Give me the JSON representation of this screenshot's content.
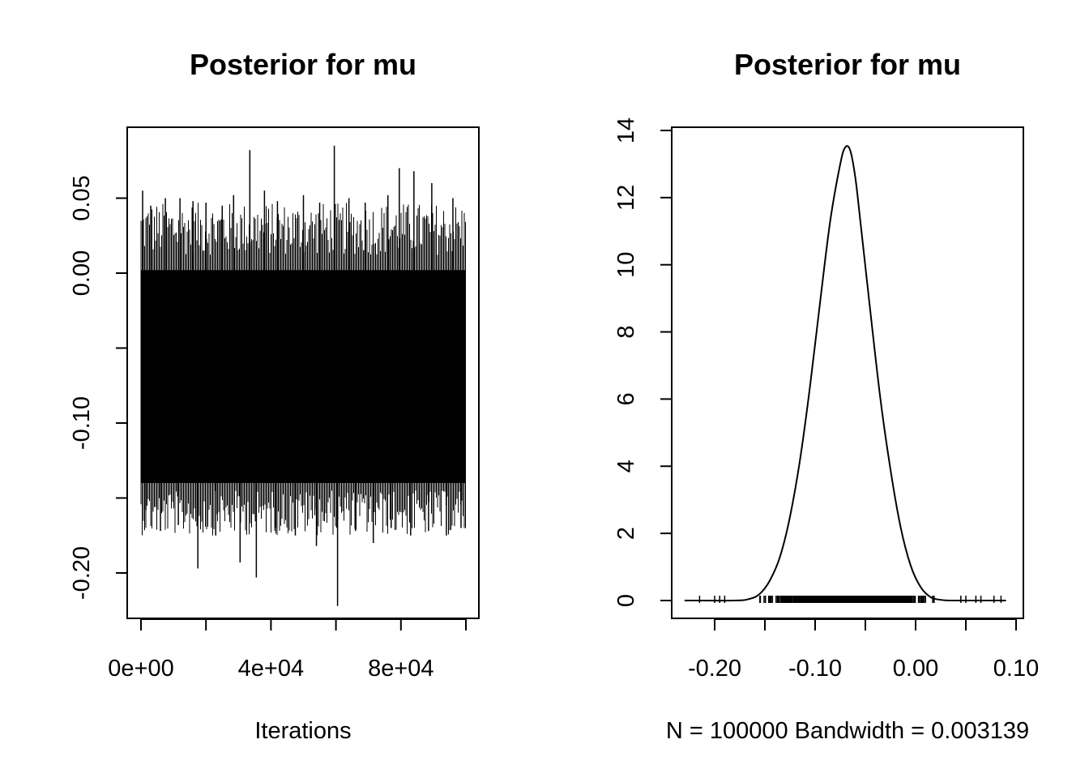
{
  "chart_data": [
    {
      "type": "line",
      "title": "Posterior for mu",
      "xlabel": "Iterations",
      "ylabel": "",
      "xlim": [
        0,
        100000
      ],
      "ylim": [
        -0.22,
        0.08
      ],
      "x_ticks": [
        0,
        20000,
        40000,
        60000,
        80000,
        100000
      ],
      "x_tick_labels": [
        "0e+00",
        "",
        "4e+04",
        "",
        "8e+04",
        ""
      ],
      "y_ticks": [
        -0.2,
        -0.15,
        -0.1,
        -0.05,
        0.0,
        0.05
      ],
      "y_tick_labels": [
        "-0.20",
        "",
        "-0.10",
        "",
        "0.00",
        "0.05"
      ],
      "series": [
        {
          "values_summary": {
            "n": 100000,
            "band_low": -0.14,
            "band_high": 0.002,
            "mean": -0.065
          },
          "spikes": [
            {
              "x": 500,
              "y": 0.055
            },
            {
              "x": 3000,
              "y": 0.045
            },
            {
              "x": 7500,
              "y": 0.05
            },
            {
              "x": 12000,
              "y": 0.05
            },
            {
              "x": 16000,
              "y": 0.048
            },
            {
              "x": 20000,
              "y": 0.047
            },
            {
              "x": 25000,
              "y": 0.045
            },
            {
              "x": 28500,
              "y": 0.052
            },
            {
              "x": 33500,
              "y": 0.082
            },
            {
              "x": 38000,
              "y": 0.055
            },
            {
              "x": 42000,
              "y": 0.048
            },
            {
              "x": 50000,
              "y": 0.052
            },
            {
              "x": 55000,
              "y": 0.047
            },
            {
              "x": 59500,
              "y": 0.085
            },
            {
              "x": 64000,
              "y": 0.05
            },
            {
              "x": 69000,
              "y": 0.047
            },
            {
              "x": 76000,
              "y": 0.052
            },
            {
              "x": 79500,
              "y": 0.07
            },
            {
              "x": 84000,
              "y": 0.068
            },
            {
              "x": 89500,
              "y": 0.06
            },
            {
              "x": 96000,
              "y": 0.05
            },
            {
              "x": 1500,
              "y": -0.158
            },
            {
              "x": 6000,
              "y": -0.172
            },
            {
              "x": 11500,
              "y": -0.168
            },
            {
              "x": 17500,
              "y": -0.197
            },
            {
              "x": 23000,
              "y": -0.175
            },
            {
              "x": 30500,
              "y": -0.193
            },
            {
              "x": 35500,
              "y": -0.203
            },
            {
              "x": 41500,
              "y": -0.17
            },
            {
              "x": 47500,
              "y": -0.175
            },
            {
              "x": 54000,
              "y": -0.182
            },
            {
              "x": 60500,
              "y": -0.222
            },
            {
              "x": 66000,
              "y": -0.172
            },
            {
              "x": 71500,
              "y": -0.18
            },
            {
              "x": 77000,
              "y": -0.17
            },
            {
              "x": 83000,
              "y": -0.175
            },
            {
              "x": 88500,
              "y": -0.172
            },
            {
              "x": 94000,
              "y": -0.175
            },
            {
              "x": 98500,
              "y": -0.17
            }
          ]
        }
      ]
    },
    {
      "type": "line",
      "title": "Posterior for mu",
      "xlabel": "N = 100000   Bandwidth = 0.003139",
      "ylabel": "",
      "xlim": [
        -0.24,
        0.1
      ],
      "ylim": [
        -0.5,
        14
      ],
      "x_ticks": [
        -0.2,
        -0.15,
        -0.1,
        -0.05,
        0.0,
        0.05,
        0.1
      ],
      "x_tick_labels": [
        "-0.20",
        "",
        "-0.10",
        "",
        "0.00",
        "",
        "0.10"
      ],
      "y_ticks": [
        0,
        2,
        4,
        6,
        8,
        10,
        12,
        14
      ],
      "y_tick_labels": [
        "0",
        "2",
        "4",
        "6",
        "8",
        "10",
        "12",
        "14"
      ],
      "series": [
        {
          "x": [
            -0.23,
            -0.18,
            -0.165,
            -0.155,
            -0.145,
            -0.135,
            -0.125,
            -0.115,
            -0.105,
            -0.095,
            -0.085,
            -0.075,
            -0.07,
            -0.065,
            -0.06,
            -0.055,
            -0.045,
            -0.035,
            -0.025,
            -0.015,
            -0.005,
            0.005,
            0.015,
            0.025,
            0.035,
            0.05,
            0.09
          ],
          "y": [
            0.0,
            0.0,
            0.05,
            0.2,
            0.6,
            1.3,
            2.5,
            4.2,
            6.4,
            8.9,
            11.3,
            13.0,
            13.5,
            13.4,
            12.6,
            11.3,
            8.6,
            6.0,
            3.9,
            2.2,
            1.05,
            0.4,
            0.1,
            0.02,
            0.0,
            0.0,
            0.0
          ]
        }
      ],
      "rug_range": [
        -0.22,
        0.09
      ]
    }
  ]
}
